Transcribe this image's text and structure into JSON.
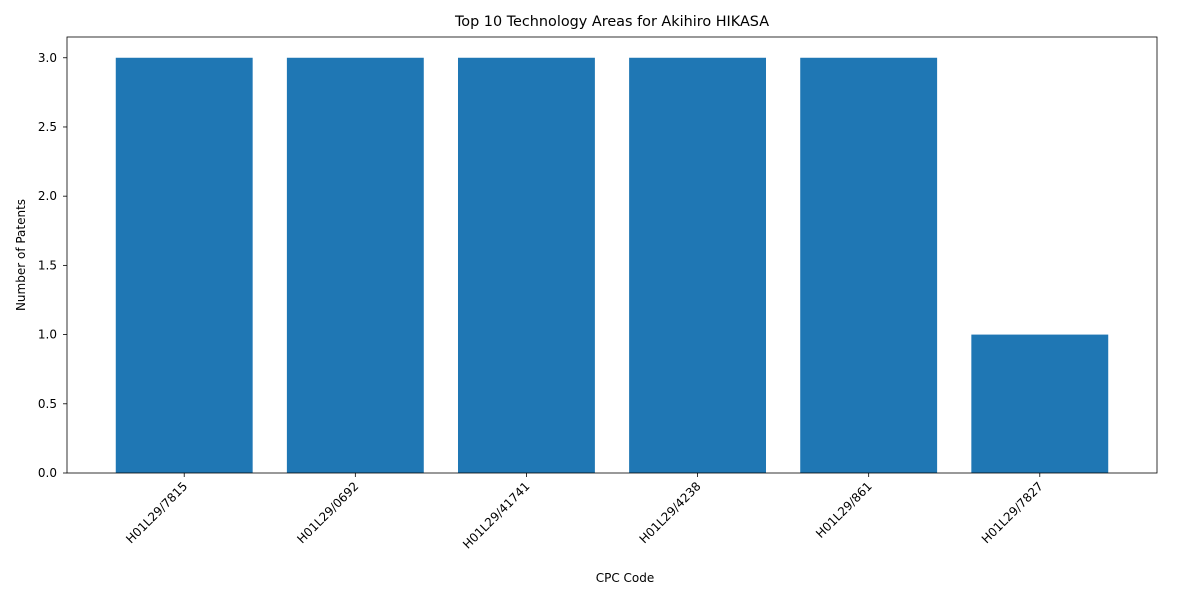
{
  "chart_data": {
    "type": "bar",
    "title": "Top 10 Technology Areas for Akihiro HIKASA",
    "x_label": "CPC Code",
    "y_label": "Number of Patents",
    "categories": [
      "H01L29/7815",
      "H01L29/0692",
      "H01L29/41741",
      "H01L29/4238",
      "H01L29/861",
      "H01L29/7827"
    ],
    "values": [
      3,
      3,
      3,
      3,
      3,
      1
    ],
    "color": "#1f77b4",
    "ylim": [
      0,
      3.15
    ],
    "yticks": [
      {
        "value": 0,
        "label": "0.0"
      },
      0.5,
      {
        "value": 1,
        "label": "1.0"
      },
      1.5,
      {
        "value": 2,
        "label": "2.0"
      },
      2.5,
      {
        "value": 3,
        "label": "3.0"
      }
    ],
    "grid": false
  }
}
